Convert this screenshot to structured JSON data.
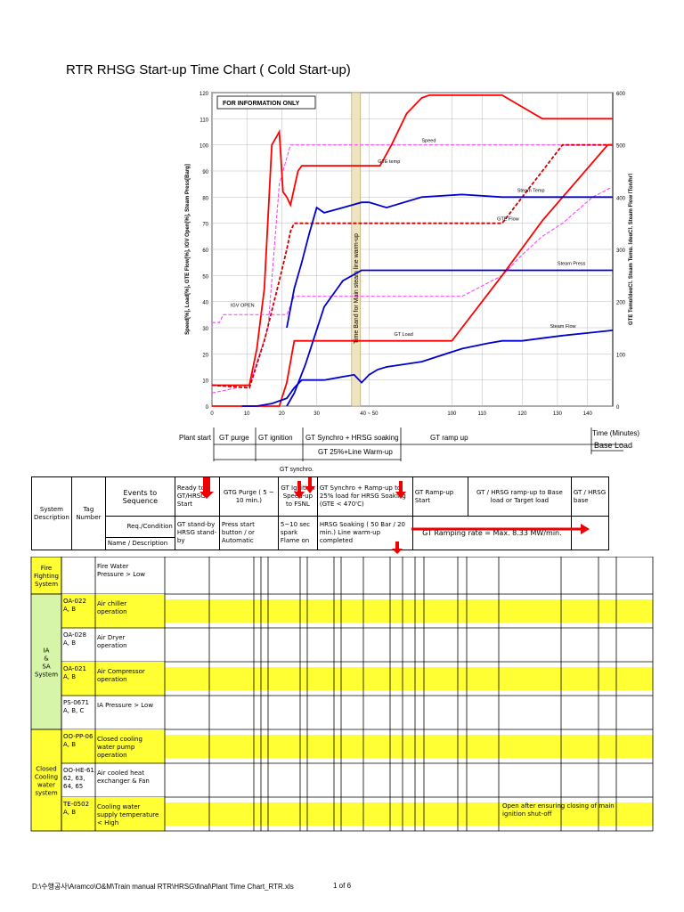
{
  "title": "RTR RHSG Start-up Time Chart ( Cold Start-up)",
  "chart_data": {
    "type": "line",
    "note": "FOR INFORMATION ONLY",
    "band_label": "Time Band for Main steam line warm-up",
    "band_tick": "40 ~ 50",
    "xlabel": "Time (Minutes)",
    "ylabel_left": "Speed[%], Load[%], GTE Flow[%], IGV Open[%], Steam Press[Barg]",
    "ylabel_right": "GTE Temp[degC], Steam Temp. [degC], Steam Flow [Ton/hr]",
    "xlim": [
      0,
      140
    ],
    "ylim_left": [
      0,
      120
    ],
    "ylim_right": [
      0,
      600
    ],
    "x_ticks": [
      "0",
      "10",
      "20",
      "30",
      "40 ~ 50",
      "100",
      "110",
      "120",
      "130",
      "140"
    ],
    "y_ticks_left": [
      0,
      10,
      20,
      30,
      40,
      50,
      60,
      70,
      80,
      90,
      100,
      110,
      120
    ],
    "y_ticks_right": [
      0,
      100,
      200,
      300,
      400,
      500,
      600
    ],
    "series": [
      {
        "name": "Speed",
        "color": "#ff33ff",
        "dash": true,
        "x": [
          0,
          10,
          15,
          18,
          20,
          21,
          140
        ],
        "y": [
          5,
          8,
          30,
          85,
          95,
          100,
          100
        ]
      },
      {
        "name": "GTE temp",
        "color": "#ff0000",
        "dash": false,
        "x": [
          0,
          10,
          12,
          14,
          16,
          18,
          19,
          20,
          21,
          23,
          24,
          25,
          42,
          46,
          47,
          52,
          58,
          64,
          67,
          70,
          72,
          78,
          90,
          96,
          112,
          132,
          135,
          140
        ],
        "y": [
          8,
          8,
          22,
          45,
          100,
          105,
          82,
          80,
          77,
          90,
          92,
          92,
          92,
          92,
          92,
          100,
          112,
          118,
          119,
          119,
          119,
          119,
          119,
          119,
          110,
          110,
          110,
          110
        ]
      },
      {
        "name": "GTE Flow",
        "color": "#cc0000",
        "dash": true,
        "x": [
          0,
          10,
          14,
          18,
          20,
          21,
          22,
          24,
          30,
          40,
          50,
          80,
          96,
          104,
          112,
          120,
          132,
          140
        ],
        "y": [
          8,
          7,
          25,
          48,
          60,
          67,
          70,
          70,
          70,
          70,
          70,
          70,
          70,
          80,
          90,
          100,
          100,
          100
        ]
      },
      {
        "name": "IGV OPEN",
        "color": "#ff33ff",
        "dash": true,
        "x": [
          0,
          2,
          3,
          8,
          12,
          18,
          20,
          22,
          42,
          50,
          80,
          96,
          104,
          112,
          120,
          132,
          140
        ],
        "y": [
          32,
          32,
          35,
          35,
          35,
          35,
          35,
          42,
          42,
          42,
          42,
          50,
          58,
          65,
          70,
          80,
          84
        ]
      },
      {
        "name": "GT Load",
        "color": "#ff0000",
        "dash": false,
        "x": [
          0,
          10,
          18,
          20,
          22,
          42,
          46,
          76,
          96,
          112,
          138,
          140
        ],
        "y": [
          0,
          0,
          0,
          9,
          25,
          25,
          25,
          25,
          50,
          71,
          100,
          100
        ]
      },
      {
        "name": "Steam Temp",
        "color": "#0000cc",
        "dash": false,
        "x": [
          20,
          22,
          24,
          26,
          28,
          30,
          35,
          40,
          42,
          50,
          64,
          80,
          96,
          112,
          140
        ],
        "y": [
          30,
          45,
          55,
          66,
          76,
          74,
          76,
          78,
          78,
          76,
          80,
          81,
          80,
          80,
          80
        ]
      },
      {
        "name": "Steam Press",
        "color": "#0000cc",
        "dash": false,
        "x": [
          20,
          22,
          25,
          30,
          35,
          40,
          42,
          50,
          64,
          80,
          96,
          112,
          140
        ],
        "y": [
          0,
          5,
          16,
          38,
          48,
          52,
          52,
          52,
          52,
          52,
          52,
          52,
          52
        ]
      },
      {
        "name": "Steam Flow",
        "color": "#0000cc",
        "dash": false,
        "x": [
          8,
          12,
          16,
          20,
          22,
          24,
          30,
          38,
          40,
          42,
          46,
          50,
          64,
          80,
          90,
          96,
          104,
          112,
          120,
          130,
          140
        ],
        "y": [
          0,
          0,
          1,
          3,
          7,
          10,
          10,
          12,
          9,
          12,
          14,
          15,
          17,
          22,
          24,
          25,
          25,
          26,
          27,
          28,
          29
        ]
      }
    ],
    "legend": "labels inline on lines"
  },
  "phases_row1": [
    {
      "label": "Plant start"
    },
    {
      "label": "GT purge"
    },
    {
      "label": "GT ignition"
    },
    {
      "label": "GT Synchro + HRSG soaking"
    },
    {
      "label": "GT ramp up"
    },
    {
      "label": "Time (Minutes)"
    }
  ],
  "phases_row2": [
    {
      "label": "GT 25%+Line Warm-up"
    },
    {
      "label": "Base Load"
    }
  ],
  "phases_row3": [
    {
      "label": "GT synchro."
    }
  ],
  "table": {
    "header": {
      "system": "System Description",
      "tag": "Tag Number",
      "events": "Events to Sequence",
      "req": "Req./Condition",
      "name": "Name / Description",
      "col1": "Ready to GT/HRSG Start",
      "col1b": "GT stand-by HRSG stand-by",
      "col2": "GTG Purge ( 5 ~ 10 min.)",
      "col2b": "Press start button / or Automatic",
      "col3": "GT Ignition Speed-up to FSNL",
      "col3b": "5~10 sec spark Flame on",
      "col4": "GT Synchro + Ramp-up to 25% load for HRSG Soaking (GTE < 470'C)",
      "col4b": "HRSG Soaking ( 50 Bar / 20 min.) Line warm-up completed",
      "col5": "GT Ramp-up Start",
      "col5b": "GT Ramping rate = Max. 8.33 MW/min.",
      "col6": "GT / HRSG ramp-up to Base load or Target load",
      "col7": "GT / HRSG base"
    },
    "rows": [
      {
        "system": "Fire Fighting System",
        "tag": "",
        "desc": "Fire Water Pressure > Low",
        "note": ""
      },
      {
        "system": "IA & SA System",
        "tag": "OA-022 A, B",
        "desc": "Air chiller operation",
        "note": ""
      },
      {
        "system": "",
        "tag": "OA-028 A, B",
        "desc": "Air Dryer operation",
        "note": ""
      },
      {
        "system": "",
        "tag": "OA-021 A, B",
        "desc": "Air Compressor operation",
        "note": ""
      },
      {
        "system": "",
        "tag": "PS-0671 A, B, C",
        "desc": "IA Pressure > Low",
        "note": ""
      },
      {
        "system": "Closed Cooling water system",
        "tag": "OO-PP-06 A, B",
        "desc": "Closed cooling water pump operation",
        "note": ""
      },
      {
        "system": "",
        "tag": "OO-HE-61, 62, 63, 64, 65",
        "desc": "Air cooled heat exchanger & Fan",
        "note": ""
      },
      {
        "system": "",
        "tag": "TE-0502 A, B",
        "desc": "Cooling water supply temperature < High",
        "note": "Open after ensuring closing of main ignition shut-off"
      }
    ]
  },
  "footer": {
    "path": "D:\\수행공사\\Aramco\\O&M\\Train manual RTR\\HRSG\\final\\Plant Time Chart_RTR.xls",
    "page": "1 of 6"
  }
}
